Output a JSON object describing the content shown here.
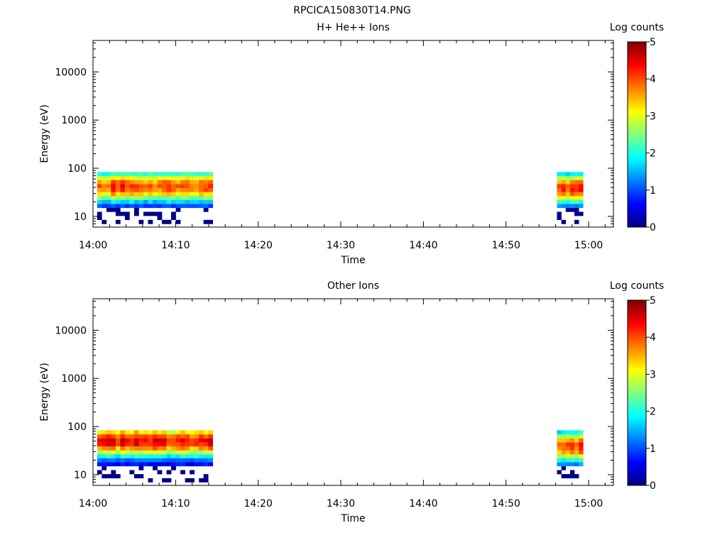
{
  "figure_title": "RPCICA150830T14.PNG",
  "chart_data": [
    {
      "type": "heatmap",
      "title": "H+ He++ Ions",
      "xlabel": "Time",
      "ylabel": "Energy (eV)",
      "x_ticks": [
        "14:00",
        "14:10",
        "14:20",
        "14:30",
        "14:40",
        "14:50",
        "15:00"
      ],
      "y_ticks": [
        "10",
        "100",
        "1000",
        "10000"
      ],
      "y_scale": "log",
      "ylim": [
        6,
        45000
      ],
      "xlim_minutes_after_14_00": [
        0,
        63
      ],
      "colorbar": {
        "label": "Log counts",
        "range": [
          0,
          5
        ],
        "ticks": [
          "0",
          "1",
          "2",
          "3",
          "4",
          "5"
        ]
      },
      "energy_bins_eV": [
        7,
        8.5,
        10.3,
        12.5,
        15.1,
        18.3,
        22.1,
        26.7,
        32.3,
        39.1,
        47.3,
        57.2,
        69.2,
        83.7
      ],
      "blocks": [
        {
          "time_range": [
            "14:00:30",
            "14:14:30"
          ],
          "energy_range_eV": [
            15,
            97
          ],
          "peak_log_counts": 4.4,
          "peak_energy_eV": 38
        },
        {
          "time_range": [
            "14:56:10",
            "14:59:20"
          ],
          "energy_range_eV": [
            15,
            97
          ],
          "peak_log_counts": 4.4,
          "peak_energy_eV": 35
        }
      ]
    },
    {
      "type": "heatmap",
      "title": "Other Ions",
      "xlabel": "Time",
      "ylabel": "Energy (eV)",
      "x_ticks": [
        "14:00",
        "14:10",
        "14:20",
        "14:30",
        "14:40",
        "14:50",
        "15:00"
      ],
      "y_ticks": [
        "10",
        "100",
        "1000",
        "10000"
      ],
      "y_scale": "log",
      "ylim": [
        6,
        45000
      ],
      "xlim_minutes_after_14_00": [
        0,
        63
      ],
      "colorbar": {
        "label": "Log counts",
        "range": [
          0,
          5
        ],
        "ticks": [
          "0",
          "1",
          "2",
          "3",
          "4",
          "5"
        ]
      },
      "energy_bins_eV": [
        7,
        8.5,
        10.3,
        12.5,
        15.1,
        18.3,
        22.1,
        26.7,
        32.3,
        39.1,
        47.3,
        57.2,
        69.2,
        83.7
      ],
      "blocks": [
        {
          "time_range": [
            "14:00:30",
            "14:14:30"
          ],
          "energy_range_eV": [
            15,
            97
          ],
          "peak_log_counts": 4.7,
          "peak_energy_eV": 45
        },
        {
          "time_range": [
            "14:56:10",
            "14:59:20"
          ],
          "energy_range_eV": [
            15,
            97
          ],
          "peak_log_counts": 4.4,
          "peak_energy_eV": 35
        }
      ]
    }
  ]
}
